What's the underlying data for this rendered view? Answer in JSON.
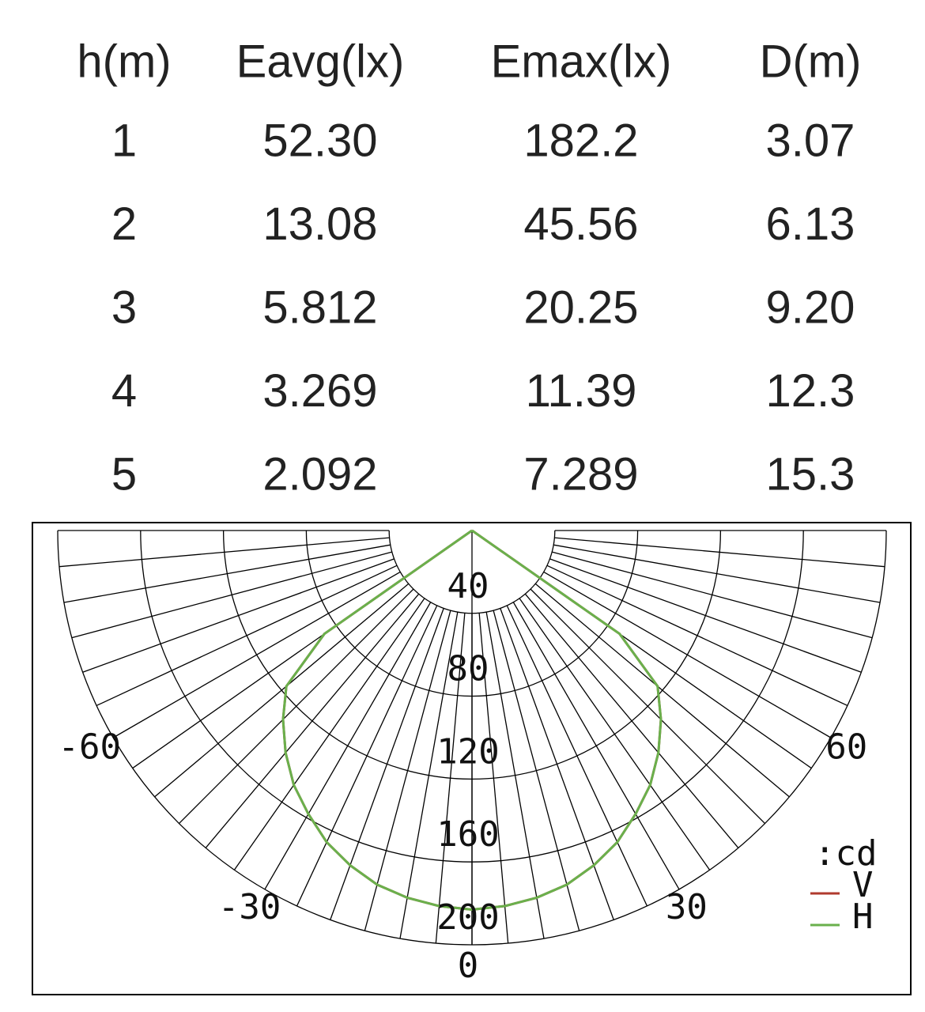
{
  "table": {
    "header": [
      "h(m)",
      "Eavg(lx)",
      "Emax(lx)",
      "D(m)"
    ],
    "rows": [
      [
        "1",
        "52.30",
        "182.2",
        "3.07"
      ],
      [
        "2",
        "13.08",
        "45.56",
        "6.13"
      ],
      [
        "3",
        "5.812",
        "20.25",
        "9.20"
      ],
      [
        "4",
        "3.269",
        "11.39",
        "12.3"
      ],
      [
        "5",
        "2.092",
        "7.289",
        "15.3"
      ]
    ]
  },
  "chart_data": {
    "type": "polar",
    "unit_label": ":cd",
    "x": [
      -90,
      -85,
      -80,
      -75,
      -70,
      -65,
      -60,
      -55,
      -50,
      -45,
      -40,
      -35,
      -30,
      -25,
      -20,
      -15,
      -10,
      -5,
      0,
      5,
      10,
      15,
      20,
      25,
      30,
      35,
      40,
      45,
      50,
      55,
      60,
      65,
      70,
      75,
      80,
      85,
      90
    ],
    "series": [
      {
        "name": "V",
        "color": "#b03a2e",
        "values": [
          0,
          0,
          0,
          0,
          0,
          0,
          0,
          87,
          117,
          129,
          140,
          150,
          158,
          166,
          172,
          177,
          180,
          182,
          183,
          182,
          180,
          177,
          172,
          166,
          158,
          150,
          140,
          129,
          117,
          87,
          0,
          0,
          0,
          0,
          0,
          0,
          0
        ]
      },
      {
        "name": "H",
        "color": "#6ab04c",
        "values": [
          0,
          0,
          0,
          0,
          0,
          0,
          0,
          87,
          117,
          129,
          140,
          150,
          158,
          166,
          172,
          177,
          180,
          182,
          183,
          182,
          180,
          177,
          172,
          166,
          158,
          150,
          140,
          129,
          117,
          87,
          0,
          0,
          0,
          0,
          0,
          0,
          0
        ]
      }
    ],
    "rlim": [
      0,
      200
    ],
    "rticks": [
      40,
      80,
      120,
      160,
      200
    ],
    "xticks": [
      -60,
      -30,
      0,
      30,
      60
    ]
  }
}
